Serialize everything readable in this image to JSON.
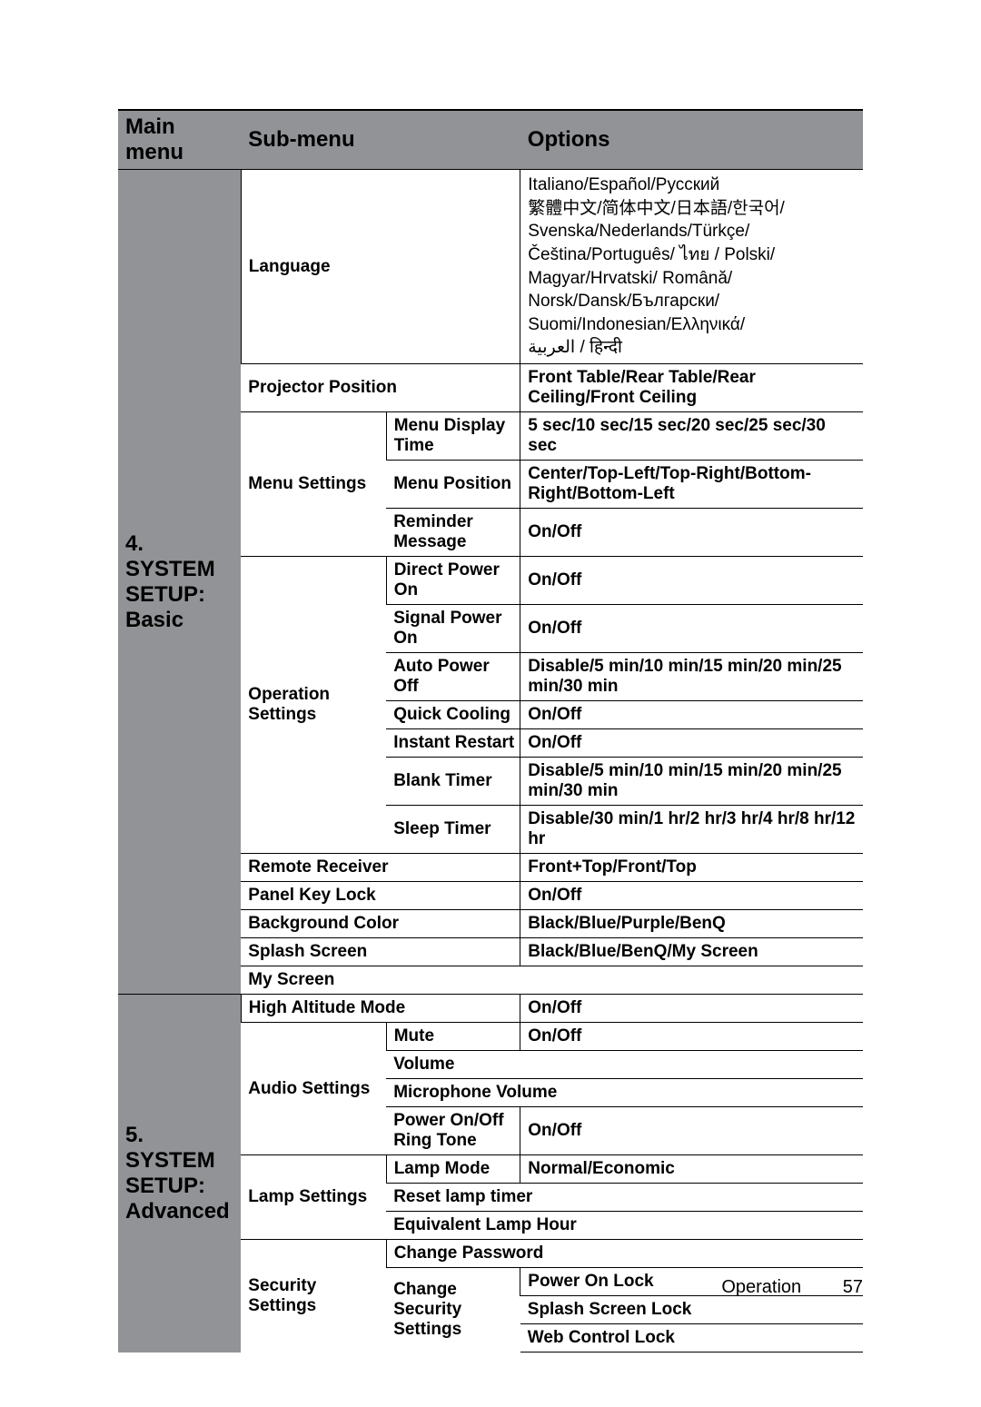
{
  "header": {
    "mainmenu": "Main menu",
    "submenu": "Sub-menu",
    "options": "Options"
  },
  "sections": {
    "basic": {
      "title_num": "4.",
      "title_l1": "SYSTEM",
      "title_l2": "SETUP:",
      "title_l3": "Basic",
      "language": {
        "label": "Language",
        "options": "Italiano/Español/Русский\n繁體中文/简体中文/日本語/한국어/\nSvenska/Nederlands/Türkçe/\nČeština/Português/ ไทย / Polski/\nMagyar/Hrvatski/ Română/\nNorsk/Dansk/Български/\nSuomi/Indonesian/Ελληνικά/\nالعربية / हिन्दी"
      },
      "projector_position": {
        "label": "Projector Position",
        "options": "Front Table/Rear Table/Rear Ceiling/Front Ceiling"
      },
      "menu_settings": {
        "label": "Menu Settings",
        "menu_display_time": {
          "label": "Menu Display Time",
          "options": "5 sec/10 sec/15 sec/20 sec/25 sec/30 sec"
        },
        "menu_position": {
          "label": "Menu Position",
          "options": "Center/Top-Left/Top-Right/Bottom-Right/Bottom-Left"
        },
        "reminder_message": {
          "label": "Reminder Message",
          "options": "On/Off"
        }
      },
      "operation_settings": {
        "label": "Operation Settings",
        "direct_power_on": {
          "label": "Direct Power On",
          "options": "On/Off"
        },
        "signal_power_on": {
          "label": "Signal Power On",
          "options": "On/Off"
        },
        "auto_power_off": {
          "label": "Auto Power Off",
          "options": "Disable/5 min/10 min/15 min/20 min/25 min/30 min"
        },
        "quick_cooling": {
          "label": "Quick Cooling",
          "options": "On/Off"
        },
        "instant_restart": {
          "label": "Instant Restart",
          "options": "On/Off"
        },
        "blank_timer": {
          "label": "Blank Timer",
          "options": "Disable/5 min/10 min/15 min/20 min/25 min/30 min"
        },
        "sleep_timer": {
          "label": "Sleep Timer",
          "options": "Disable/30 min/1 hr/2 hr/3 hr/4 hr/8 hr/12 hr"
        }
      },
      "remote_receiver": {
        "label": "Remote Receiver",
        "options": "Front+Top/Front/Top"
      },
      "panel_key_lock": {
        "label": "Panel Key Lock",
        "options": "On/Off"
      },
      "background_color": {
        "label": "Background Color",
        "options": "Black/Blue/Purple/BenQ"
      },
      "splash_screen": {
        "label": "Splash Screen",
        "options": "Black/Blue/BenQ/My Screen"
      },
      "my_screen": {
        "label": "My Screen",
        "options": ""
      }
    },
    "advanced": {
      "title_num": "5.",
      "title_l1": "SYSTEM",
      "title_l2": "SETUP:",
      "title_l3": "Advanced",
      "high_altitude": {
        "label": "High Altitude Mode",
        "options": "On/Off"
      },
      "audio_settings": {
        "label": "Audio Settings",
        "mute": {
          "label": "Mute",
          "options": "On/Off"
        },
        "volume": {
          "label": "Volume",
          "options": ""
        },
        "mic_volume": {
          "label": "Microphone Volume",
          "options": ""
        },
        "power_ring": {
          "label": "Power On/Off Ring Tone",
          "options": "On/Off"
        }
      },
      "lamp_settings": {
        "label": "Lamp Settings",
        "lamp_mode": {
          "label": "Lamp Mode",
          "options": "Normal/Economic"
        },
        "reset_lamp": {
          "label": "Reset lamp timer",
          "options": ""
        },
        "equiv_lamp": {
          "label": "Equivalent Lamp Hour",
          "options": ""
        }
      },
      "security_settings": {
        "label": "Security Settings",
        "change_password": {
          "label": "Change Password",
          "options": ""
        },
        "change_security": {
          "label": "Change Security Settings",
          "power_on_lock": "Power On Lock",
          "splash_lock": "Splash Screen Lock",
          "web_lock": "Web Control Lock"
        }
      }
    }
  },
  "footer": {
    "section": "Operation",
    "page": "57"
  },
  "colors": {
    "header_bg": "#919396",
    "text": "#000000",
    "bg": "#ffffff",
    "border": "#000000"
  },
  "typography": {
    "header_fontsize": 24,
    "body_fontsize": 19,
    "footer_fontsize": 20,
    "font_family": "Arial"
  }
}
